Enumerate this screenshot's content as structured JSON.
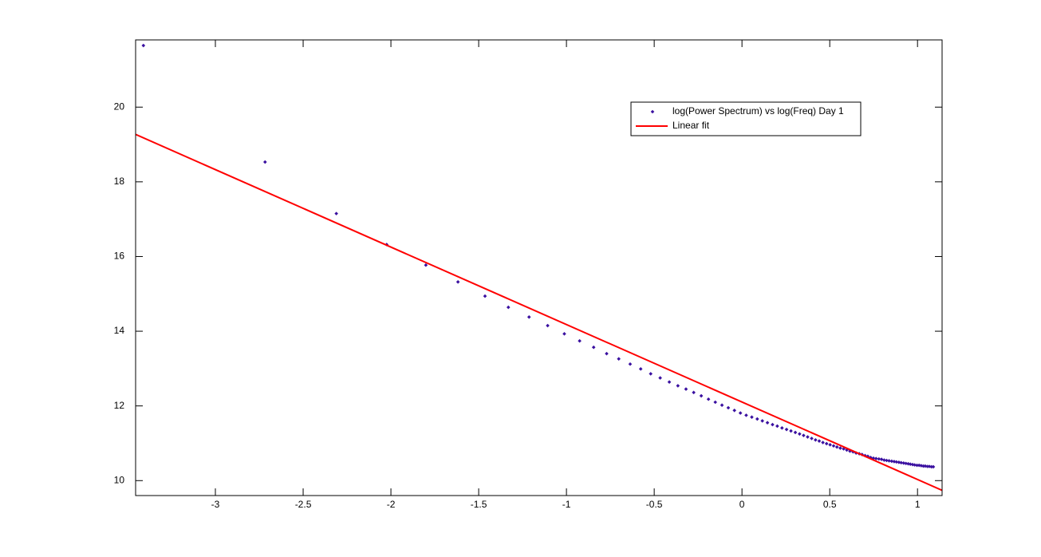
{
  "chart_data": {
    "type": "scatter",
    "series": [
      {
        "name": "log(Power Spectrum) vs log(Freq) Day 1",
        "color": "#3a10a0",
        "style": "markers",
        "x": [
          -3.41,
          -2.717,
          -2.311,
          -2.024,
          -1.801,
          -1.618,
          -1.464,
          -1.331,
          -1.213,
          -1.107,
          -1.012,
          -0.925,
          -0.845,
          -0.771,
          -0.702,
          -0.637,
          -0.577,
          -0.52,
          -0.466,
          -0.414,
          -0.365,
          -0.319,
          -0.275,
          -0.232,
          -0.191,
          -0.152,
          -0.114,
          -0.078,
          -0.043,
          -0.009,
          0.024,
          0.056,
          0.087,
          0.116,
          0.145,
          0.174,
          0.201,
          0.228,
          0.254,
          0.279,
          0.304,
          0.328,
          0.351,
          0.374,
          0.397,
          0.419,
          0.44,
          0.461,
          0.482,
          0.502,
          0.522,
          0.541,
          0.56,
          0.579,
          0.597,
          0.615,
          0.633,
          0.65,
          0.668,
          0.684,
          0.701,
          0.717,
          0.733,
          0.749,
          0.764,
          0.78,
          0.795,
          0.81,
          0.824,
          0.838,
          0.853,
          0.867,
          0.88,
          0.894,
          0.907,
          0.921,
          0.934,
          0.947,
          0.959,
          0.972,
          0.984,
          0.997,
          1.009,
          1.021,
          1.033,
          1.044,
          1.056,
          1.067,
          1.079,
          1.09
        ],
        "values": [
          21.65,
          18.53,
          17.15,
          16.32,
          15.77,
          15.32,
          14.94,
          14.64,
          14.38,
          14.15,
          13.93,
          13.74,
          13.57,
          13.4,
          13.26,
          13.12,
          12.99,
          12.86,
          12.75,
          12.64,
          12.54,
          12.45,
          12.36,
          12.27,
          12.18,
          12.1,
          12.02,
          11.95,
          11.88,
          11.81,
          11.75,
          11.7,
          11.65,
          11.6,
          11.55,
          11.5,
          11.46,
          11.41,
          11.37,
          11.33,
          11.29,
          11.25,
          11.21,
          11.17,
          11.13,
          11.09,
          11.06,
          11.02,
          10.99,
          10.96,
          10.93,
          10.9,
          10.87,
          10.85,
          10.82,
          10.79,
          10.77,
          10.74,
          10.72,
          10.7,
          10.67,
          10.65,
          10.62,
          10.6,
          10.59,
          10.58,
          10.57,
          10.55,
          10.54,
          10.53,
          10.52,
          10.51,
          10.5,
          10.49,
          10.48,
          10.47,
          10.46,
          10.45,
          10.44,
          10.43,
          10.42,
          10.41,
          10.41,
          10.4,
          10.39,
          10.39,
          10.38,
          10.38,
          10.37,
          10.37
        ]
      },
      {
        "name": "Linear fit",
        "color": "#ff0000",
        "style": "line",
        "x": [
          -3.4545,
          1.14
        ],
        "values": [
          19.27,
          9.74
        ]
      }
    ],
    "xlim": [
      -3.4545,
      1.14
    ],
    "ylim": [
      9.6,
      21.8
    ],
    "xticks": [
      -3,
      -2.5,
      -2,
      -1.5,
      -1,
      -0.5,
      0,
      0.5,
      1
    ],
    "yticks": [
      10,
      12,
      14,
      16,
      18,
      20
    ],
    "grid": false,
    "legend": "upper right"
  }
}
